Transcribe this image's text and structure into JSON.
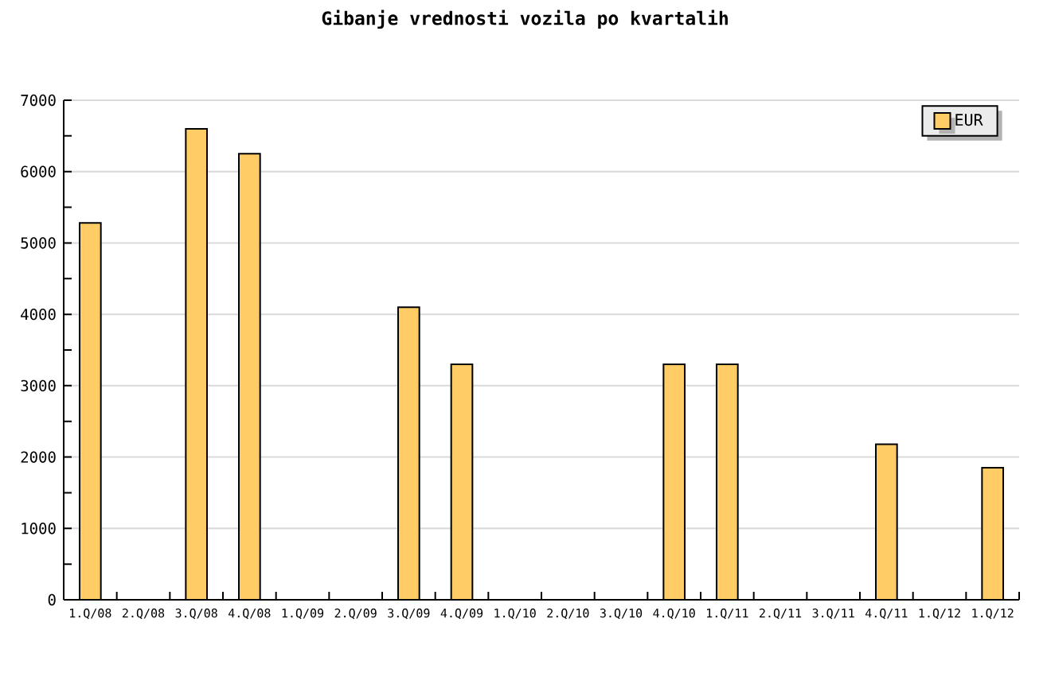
{
  "chart_data": {
    "type": "bar",
    "title": "Gibanje vrednosti vozila po kvartalih",
    "categories": [
      "1.Q/08",
      "2.Q/08",
      "3.Q/08",
      "4.Q/08",
      "1.Q/09",
      "2.Q/09",
      "3.Q/09",
      "4.Q/09",
      "1.Q/10",
      "2.Q/10",
      "3.Q/10",
      "4.Q/10",
      "1.Q/11",
      "2.Q/11",
      "3.Q/11",
      "4.Q/11",
      "1.Q/12",
      "1.Q/12"
    ],
    "series": [
      {
        "name": "EUR",
        "color": "#ffcc66",
        "values": [
          5280,
          null,
          6600,
          6250,
          null,
          null,
          4100,
          3300,
          null,
          null,
          null,
          3300,
          3300,
          null,
          null,
          2180,
          null,
          1850
        ]
      }
    ],
    "ylim": [
      0,
      7000
    ],
    "yticks": [
      0,
      {
        "value": 500,
        "label": null
      },
      1000,
      {
        "value": 1500,
        "label": null
      },
      2000,
      {
        "value": 2500,
        "label": null
      },
      3000,
      {
        "value": 3500,
        "label": null
      },
      4000,
      {
        "value": 4500,
        "label": null
      },
      5000,
      {
        "value": 5500,
        "label": null
      },
      6000,
      {
        "value": 6500,
        "label": null
      },
      7000
    ],
    "grid": "y",
    "legend": "top right"
  }
}
